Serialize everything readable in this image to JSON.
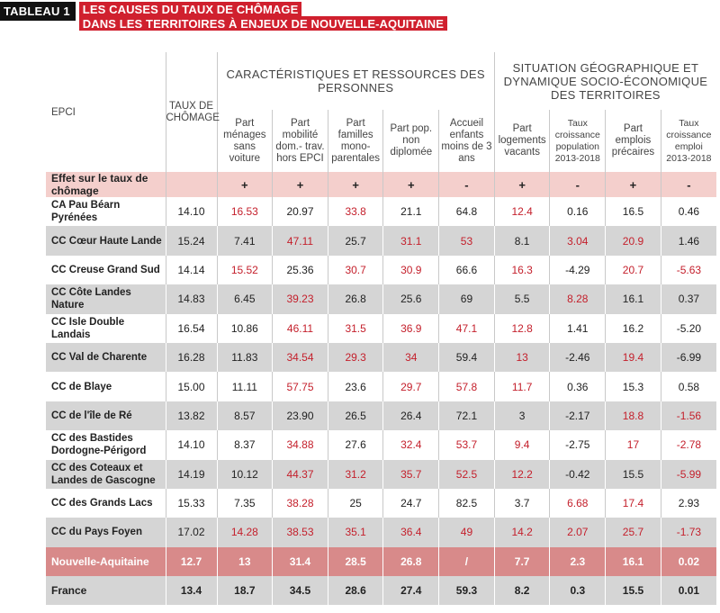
{
  "title": {
    "tag": "TABLEAU 1",
    "line1": "LES CAUSES DU TAUX DE CHÔMAGE",
    "line2": "DANS LES TERRITOIRES À ENJEUX DE NOUVELLE-AQUITAINE"
  },
  "header": {
    "epci": "EPCI",
    "taux": "TAUX DE CHÔMAGE",
    "group1": "CARACTÉRISTIQUES ET RESSOURCES DES PERSONNES",
    "group2": "SITUATION GÉOGRAPHIQUE ET DYNAMIQUE SOCIO-ÉCONOMIQUE DES TERRITOIRES",
    "cols": [
      "Part ménages sans voiture",
      "Part mobilité dom.- trav. hors EPCI",
      "Part familles mono- parentales",
      "Part pop. non diplomée",
      "Accueil enfants moins de 3 ans",
      "Part logements vacants",
      "Taux croissance population 2013-2018",
      "Part emplois précaires",
      "Taux croissance emploi 2013-2018"
    ]
  },
  "effet": {
    "label": "Effet sur le taux de chômage",
    "signs": [
      "+",
      "+",
      "+",
      "+",
      "-",
      "+",
      "-",
      "+",
      "-"
    ]
  },
  "rows": [
    {
      "name": "CA Pau Béarn Pyrénées",
      "taux": "14.10",
      "values": [
        "16.53",
        "20.97",
        "33.8",
        "21.1",
        "64.8",
        "12.4",
        "0.16",
        "16.5",
        "0.46"
      ],
      "red": [
        true,
        false,
        true,
        false,
        false,
        true,
        false,
        false,
        false
      ]
    },
    {
      "name": "CC Cœur Haute Lande",
      "taux": "15.24",
      "values": [
        "7.41",
        "47.11",
        "25.7",
        "31.1",
        "53",
        "8.1",
        "3.04",
        "20.9",
        "1.46"
      ],
      "red": [
        false,
        true,
        false,
        true,
        true,
        false,
        true,
        true,
        false
      ]
    },
    {
      "name": "CC Creuse Grand Sud",
      "taux": "14.14",
      "values": [
        "15.52",
        "25.36",
        "30.7",
        "30.9",
        "66.6",
        "16.3",
        "-4.29",
        "20.7",
        "-5.63"
      ],
      "red": [
        true,
        false,
        true,
        true,
        false,
        true,
        false,
        true,
        true
      ]
    },
    {
      "name": "CC Côte Landes Nature",
      "taux": "14.83",
      "values": [
        "6.45",
        "39.23",
        "26.8",
        "25.6",
        "69",
        "5.5",
        "8.28",
        "16.1",
        "0.37"
      ],
      "red": [
        false,
        true,
        false,
        false,
        false,
        false,
        true,
        false,
        false
      ]
    },
    {
      "name": "CC Isle Double Landais",
      "taux": "16.54",
      "values": [
        "10.86",
        "46.11",
        "31.5",
        "36.9",
        "47.1",
        "12.8",
        "1.41",
        "16.2",
        "-5.20"
      ],
      "red": [
        false,
        true,
        true,
        true,
        true,
        true,
        false,
        false,
        false
      ]
    },
    {
      "name": "CC Val de Charente",
      "taux": "16.28",
      "values": [
        "11.83",
        "34.54",
        "29.3",
        "34",
        "59.4",
        "13",
        "-2.46",
        "19.4",
        "-6.99"
      ],
      "red": [
        false,
        true,
        true,
        true,
        false,
        true,
        false,
        true,
        false
      ]
    },
    {
      "name": "CC de Blaye",
      "taux": "15.00",
      "values": [
        "11.11",
        "57.75",
        "23.6",
        "29.7",
        "57.8",
        "11.7",
        "0.36",
        "15.3",
        "0.58"
      ],
      "red": [
        false,
        true,
        false,
        true,
        true,
        true,
        false,
        false,
        false
      ]
    },
    {
      "name": "CC de l'île de Ré",
      "taux": "13.82",
      "values": [
        "8.57",
        "23.90",
        "26.5",
        "26.4",
        "72.1",
        "3",
        "-2.17",
        "18.8",
        "-1.56"
      ],
      "red": [
        false,
        false,
        false,
        false,
        false,
        false,
        false,
        true,
        true
      ]
    },
    {
      "name": "CC des Bastides Dordogne-Périgord",
      "taux": "14.10",
      "values": [
        "8.37",
        "34.88",
        "27.6",
        "32.4",
        "53.7",
        "9.4",
        "-2.75",
        "17",
        "-2.78"
      ],
      "red": [
        false,
        true,
        false,
        true,
        true,
        true,
        false,
        true,
        true
      ]
    },
    {
      "name": "CC des Coteaux et Landes de Gascogne",
      "taux": "14.19",
      "values": [
        "10.12",
        "44.37",
        "31.2",
        "35.7",
        "52.5",
        "12.2",
        "-0.42",
        "15.5",
        "-5.99"
      ],
      "red": [
        false,
        true,
        true,
        true,
        true,
        true,
        false,
        false,
        true
      ]
    },
    {
      "name": "CC des Grands Lacs",
      "taux": "15.33",
      "values": [
        "7.35",
        "38.28",
        "25",
        "24.7",
        "82.5",
        "3.7",
        "6.68",
        "17.4",
        "2.93"
      ],
      "red": [
        false,
        true,
        false,
        false,
        false,
        false,
        true,
        true,
        false
      ]
    },
    {
      "name": "CC du Pays Foyen",
      "taux": "17.02",
      "values": [
        "14.28",
        "38.53",
        "35.1",
        "36.4",
        "49",
        "14.2",
        "2.07",
        "25.7",
        "-1.73"
      ],
      "red": [
        true,
        true,
        true,
        true,
        true,
        true,
        true,
        true,
        true
      ]
    }
  ],
  "region": {
    "name": "Nouvelle-Aquitaine",
    "taux": "12.7",
    "values": [
      "13",
      "31.4",
      "28.5",
      "26.8",
      "/",
      "7.7",
      "2.3",
      "16.1",
      "0.02"
    ]
  },
  "france": {
    "name": "France",
    "taux": "13.4",
    "values": [
      "18.7",
      "34.5",
      "28.6",
      "27.4",
      "59.3",
      "8.2",
      "0.3",
      "15.5",
      "0.01"
    ]
  },
  "colors": {
    "red_text": "#c41f2b",
    "title_bg": "#d0202e",
    "effet_bg": "#f4cfcc",
    "region_bg": "#d88a8a",
    "alt_row_bg": "#d5d5d5"
  }
}
